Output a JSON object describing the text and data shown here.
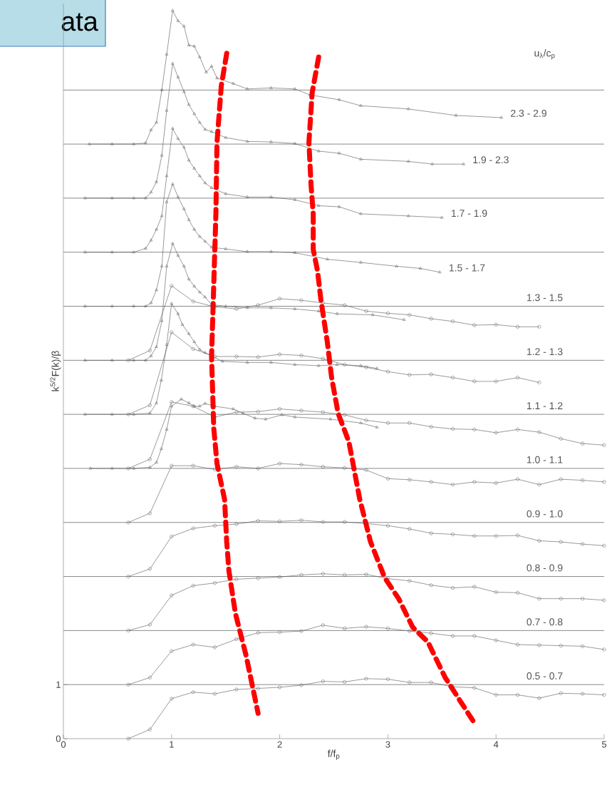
{
  "chart_data": {
    "type": "line",
    "xlabel": "f/f$_{p}$",
    "ylabel": "k$^{5/2}$F(k)/β",
    "legend_title": "u$_{λ}$/c$_{p}$",
    "annotations": [
      "ata"
    ],
    "xlim": [
      0,
      5
    ],
    "ylim": [
      0,
      13.6
    ],
    "xticks": [
      0,
      1,
      2,
      3,
      4,
      5
    ],
    "yticks": [
      0,
      1
    ],
    "ref_lines": [
      {
        "axis": "y",
        "value": 1,
        "color": "#8a8a8a"
      },
      {
        "axis": "y",
        "value": 2,
        "color": "#8a8a8a"
      },
      {
        "axis": "y",
        "value": 3,
        "color": "#8a8a8a"
      },
      {
        "axis": "y",
        "value": 4,
        "color": "#8a8a8a"
      },
      {
        "axis": "y",
        "value": 5,
        "color": "#8a8a8a"
      },
      {
        "axis": "y",
        "value": 6,
        "color": "#8a8a8a"
      },
      {
        "axis": "y",
        "value": 7,
        "color": "#8a8a8a"
      },
      {
        "axis": "y",
        "value": 8,
        "color": "#8a8a8a"
      },
      {
        "axis": "y",
        "value": 9,
        "color": "#8a8a8a"
      },
      {
        "axis": "y",
        "value": 10,
        "color": "#8a8a8a"
      },
      {
        "axis": "y",
        "value": 11,
        "color": "#8a8a8a"
      },
      {
        "axis": "y",
        "value": 12,
        "color": "#8a8a8a"
      }
    ],
    "x": [
      0.6,
      0.8,
      1.0,
      1.2,
      1.4,
      1.6,
      1.8,
      2.0,
      2.2,
      2.4,
      2.6,
      2.8,
      3.0,
      3.2,
      3.4,
      3.6,
      3.8,
      4.0,
      4.2,
      4.4,
      4.6,
      4.8,
      5.0
    ],
    "series": [
      {
        "name": "0.5 - 0.7",
        "color": "#555555",
        "marker": "circle",
        "values": [
          0.0,
          0.17,
          0.74,
          0.86,
          0.83,
          0.91,
          0.93,
          0.95,
          0.99,
          1.06,
          1.05,
          1.11,
          1.1,
          1.04,
          1.04,
          0.96,
          0.94,
          0.81,
          0.81,
          0.75,
          0.84,
          0.83,
          0.81
        ]
      },
      {
        "name": "0.7 - 0.8",
        "color": "#555555",
        "marker": "circle",
        "values": [
          1.0,
          1.13,
          1.62,
          1.74,
          1.69,
          1.84,
          1.96,
          1.97,
          1.99,
          2.1,
          2.04,
          2.07,
          2.04,
          1.99,
          1.95,
          1.9,
          1.9,
          1.82,
          1.74,
          1.73,
          1.72,
          1.71,
          1.65
        ]
      },
      {
        "name": "0.8 - 0.9",
        "color": "#555555",
        "marker": "circle",
        "values": [
          2.0,
          2.11,
          2.65,
          2.83,
          2.88,
          2.95,
          2.97,
          2.99,
          3.03,
          3.05,
          3.03,
          3.04,
          2.96,
          2.92,
          2.84,
          2.79,
          2.81,
          2.71,
          2.7,
          2.59,
          2.59,
          2.59,
          2.56
        ]
      },
      {
        "name": "0.9 - 1.0",
        "color": "#555555",
        "marker": "circle",
        "values": [
          3.0,
          3.14,
          3.74,
          3.89,
          3.94,
          3.97,
          4.03,
          4.02,
          4.04,
          4.01,
          4.01,
          3.98,
          3.94,
          3.88,
          3.8,
          3.78,
          3.75,
          3.75,
          3.76,
          3.66,
          3.64,
          3.6,
          3.57
        ]
      },
      {
        "name": "1.0 - 1.1",
        "color": "#555555",
        "marker": "circle",
        "values": [
          4.0,
          4.17,
          5.05,
          5.05,
          4.98,
          5.03,
          5.0,
          5.09,
          5.07,
          5.03,
          5.01,
          4.97,
          4.81,
          4.79,
          4.75,
          4.7,
          4.75,
          4.73,
          4.8,
          4.7,
          4.8,
          4.78,
          4.75
        ]
      },
      {
        "name": "1.1 - 1.2",
        "color": "#555555",
        "marker": "circle",
        "values": [
          5.0,
          5.17,
          6.23,
          6.15,
          5.95,
          6.04,
          6.05,
          6.1,
          6.07,
          6.04,
          5.99,
          5.89,
          5.84,
          5.84,
          5.77,
          5.73,
          5.72,
          5.66,
          5.72,
          5.67,
          5.55,
          5.46,
          5.43
        ]
      },
      {
        "color": "#555555",
        "marker": "triangle",
        "x": [
          0.25,
          0.45,
          0.65,
          0.8,
          0.86,
          0.905,
          0.955,
          1.0,
          1.09,
          1.16,
          1.21,
          1.26,
          1.31,
          1.4,
          1.57,
          1.66,
          1.77,
          1.87,
          2.02,
          2.14,
          2.47,
          2.75,
          2.9
        ],
        "values": [
          5.0,
          5.0,
          5.0,
          5.02,
          5.11,
          5.36,
          5.72,
          6.15,
          6.28,
          6.21,
          6.15,
          6.15,
          6.2,
          6.15,
          6.1,
          6.02,
          5.93,
          5.91,
          5.99,
          5.95,
          5.91,
          5.84,
          5.76
        ]
      },
      {
        "name": "1.2 - 1.3",
        "color": "#555555",
        "marker": "circle",
        "x": [
          0.6,
          0.8,
          1.0,
          1.2,
          1.4,
          1.6,
          1.8,
          2.0,
          2.2,
          2.4,
          2.6,
          2.8,
          3.0,
          3.2,
          3.4,
          3.6,
          3.8,
          4.0,
          4.2,
          4.4
        ],
        "values": [
          6.0,
          6.17,
          7.52,
          7.21,
          7.07,
          7.07,
          7.06,
          7.11,
          7.09,
          7.03,
          6.92,
          6.87,
          6.79,
          6.73,
          6.74,
          6.68,
          6.61,
          6.61,
          6.68,
          6.59
        ]
      },
      {
        "color": "#555555",
        "marker": "triangle",
        "x": [
          0.2,
          0.45,
          0.65,
          0.8,
          0.86,
          0.905,
          0.955,
          1.0,
          1.06,
          1.1,
          1.16,
          1.21,
          1.26,
          1.31,
          1.47,
          1.7,
          1.92,
          2.14,
          2.36,
          2.53,
          2.75,
          2.9
        ],
        "values": [
          6.0,
          6.0,
          6.0,
          6.02,
          6.21,
          6.63,
          7.29,
          8.05,
          7.86,
          7.66,
          7.49,
          7.34,
          7.2,
          7.14,
          6.98,
          6.96,
          6.96,
          6.92,
          6.9,
          6.92,
          6.9,
          6.85
        ]
      },
      {
        "name": "1.3 - 1.5",
        "color": "#555555",
        "marker": "circle",
        "x": [
          0.6,
          0.8,
          1.0,
          1.2,
          1.4,
          1.6,
          1.8,
          2.0,
          2.2,
          2.4,
          2.6,
          2.8,
          3.0,
          3.2,
          3.4,
          3.6,
          3.8,
          4.0,
          4.2,
          4.4
        ],
        "values": [
          7.0,
          7.18,
          8.38,
          8.09,
          7.99,
          7.95,
          8.02,
          8.14,
          8.11,
          8.06,
          8.02,
          7.91,
          7.87,
          7.84,
          7.77,
          7.72,
          7.65,
          7.66,
          7.62,
          7.62
        ]
      },
      {
        "color": "#555555",
        "marker": "triangle",
        "x": [
          0.2,
          0.45,
          0.65,
          0.76,
          0.81,
          0.86,
          0.91,
          0.955,
          1.01,
          1.06,
          1.115,
          1.16,
          1.21,
          1.26,
          1.31,
          1.37,
          1.5,
          1.7,
          1.92,
          2.14,
          2.36,
          2.53,
          2.86,
          3.15
        ],
        "values": [
          7.0,
          7.0,
          7.0,
          7.0,
          7.08,
          7.25,
          7.73,
          8.74,
          9.16,
          8.94,
          8.74,
          8.5,
          8.37,
          8.26,
          8.17,
          8.03,
          8.0,
          7.97,
          7.97,
          7.95,
          7.91,
          7.86,
          7.84,
          7.75
        ]
      },
      {
        "name": "1.5 - 1.7",
        "color": "#555555",
        "marker": "triangle",
        "x": [
          0.2,
          0.45,
          0.65,
          0.76,
          0.81,
          0.86,
          0.91,
          0.955,
          1.01,
          1.06,
          1.115,
          1.16,
          1.21,
          1.26,
          1.31,
          1.37,
          1.5,
          1.7,
          1.92,
          2.14,
          2.44,
          2.75,
          3.08,
          3.3,
          3.48
        ],
        "values": [
          8.0,
          8.0,
          8.0,
          8.0,
          8.06,
          8.3,
          8.74,
          9.93,
          10.26,
          10.02,
          9.8,
          9.6,
          9.42,
          9.29,
          9.2,
          9.09,
          9.06,
          9.01,
          9.01,
          8.99,
          8.87,
          8.81,
          8.74,
          8.7,
          8.63
        ]
      },
      {
        "name": "1.7 - 1.9",
        "color": "#555555",
        "marker": "triangle",
        "x": [
          0.2,
          0.45,
          0.65,
          0.76,
          0.81,
          0.86,
          0.91,
          0.955,
          1.01,
          1.06,
          1.115,
          1.16,
          1.21,
          1.26,
          1.31,
          1.37,
          1.5,
          1.7,
          1.92,
          2.14,
          2.36,
          2.55,
          2.75,
          3.19,
          3.5
        ],
        "values": [
          9.0,
          9.0,
          9.0,
          9.07,
          9.22,
          9.42,
          9.67,
          10.41,
          11.29,
          11.1,
          10.94,
          10.7,
          10.55,
          10.41,
          10.28,
          10.19,
          10.08,
          10.02,
          10.02,
          9.97,
          9.86,
          9.84,
          9.71,
          9.67,
          9.64
        ]
      },
      {
        "name": "1.9 - 2.3",
        "color": "#555555",
        "marker": "triangle",
        "x": [
          0.2,
          0.45,
          0.65,
          0.76,
          0.81,
          0.86,
          0.91,
          0.955,
          1.01,
          1.06,
          1.115,
          1.16,
          1.21,
          1.26,
          1.31,
          1.37,
          1.5,
          1.7,
          1.92,
          2.14,
          2.36,
          2.55,
          2.75,
          3.19,
          3.41,
          3.7
        ],
        "values": [
          10.0,
          10.0,
          10.0,
          10.0,
          10.11,
          10.3,
          10.79,
          11.62,
          12.49,
          12.24,
          11.97,
          11.73,
          11.56,
          11.4,
          11.27,
          11.23,
          11.12,
          11.05,
          11.04,
          11.01,
          10.87,
          10.83,
          10.72,
          10.68,
          10.63,
          10.63
        ]
      },
      {
        "name": "2.3 - 2.9",
        "color": "#555555",
        "marker": "triangle",
        "x": [
          0.24,
          0.45,
          0.65,
          0.76,
          0.81,
          0.86,
          0.91,
          0.955,
          1.01,
          1.06,
          1.115,
          1.16,
          1.21,
          1.26,
          1.32,
          1.37,
          1.42,
          1.57,
          1.7,
          1.92,
          2.14,
          2.28,
          2.55,
          2.75,
          3.19,
          3.63,
          4.05
        ],
        "values": [
          11.0,
          11.0,
          11.0,
          11.02,
          11.26,
          11.4,
          12.0,
          12.66,
          13.47,
          13.28,
          13.18,
          12.83,
          12.81,
          12.61,
          12.33,
          12.44,
          12.22,
          12.12,
          12.02,
          12.04,
          12.02,
          11.91,
          11.82,
          11.71,
          11.65,
          11.53,
          11.49
        ]
      },
      {
        "color": "#ff0000",
        "marker": "none",
        "line_style": "dashed",
        "x": [
          1.51,
          1.46,
          1.42,
          1.41,
          1.39,
          1.37,
          1.39,
          1.42,
          1.49,
          1.51,
          1.53,
          1.59,
          1.69,
          1.8
        ],
        "values": [
          12.68,
          12.08,
          11.03,
          9.71,
          8.39,
          7.07,
          5.75,
          5.09,
          4.43,
          3.64,
          3.11,
          2.32,
          1.53,
          0.47
        ]
      },
      {
        "color": "#ff0000",
        "marker": "none",
        "line_style": "dashed",
        "x": [
          2.36,
          2.3,
          2.27,
          2.29,
          2.31,
          2.31,
          2.35,
          2.38,
          2.44,
          2.48,
          2.54,
          2.64,
          2.74,
          2.84,
          2.97,
          3.1,
          3.23,
          3.37,
          3.53,
          3.79
        ],
        "values": [
          12.61,
          11.95,
          11.03,
          10.24,
          9.71,
          9.05,
          8.65,
          8.13,
          7.34,
          6.68,
          6.02,
          5.49,
          4.43,
          3.64,
          2.98,
          2.59,
          2.06,
          1.79,
          1.13,
          0.32
        ]
      }
    ]
  }
}
